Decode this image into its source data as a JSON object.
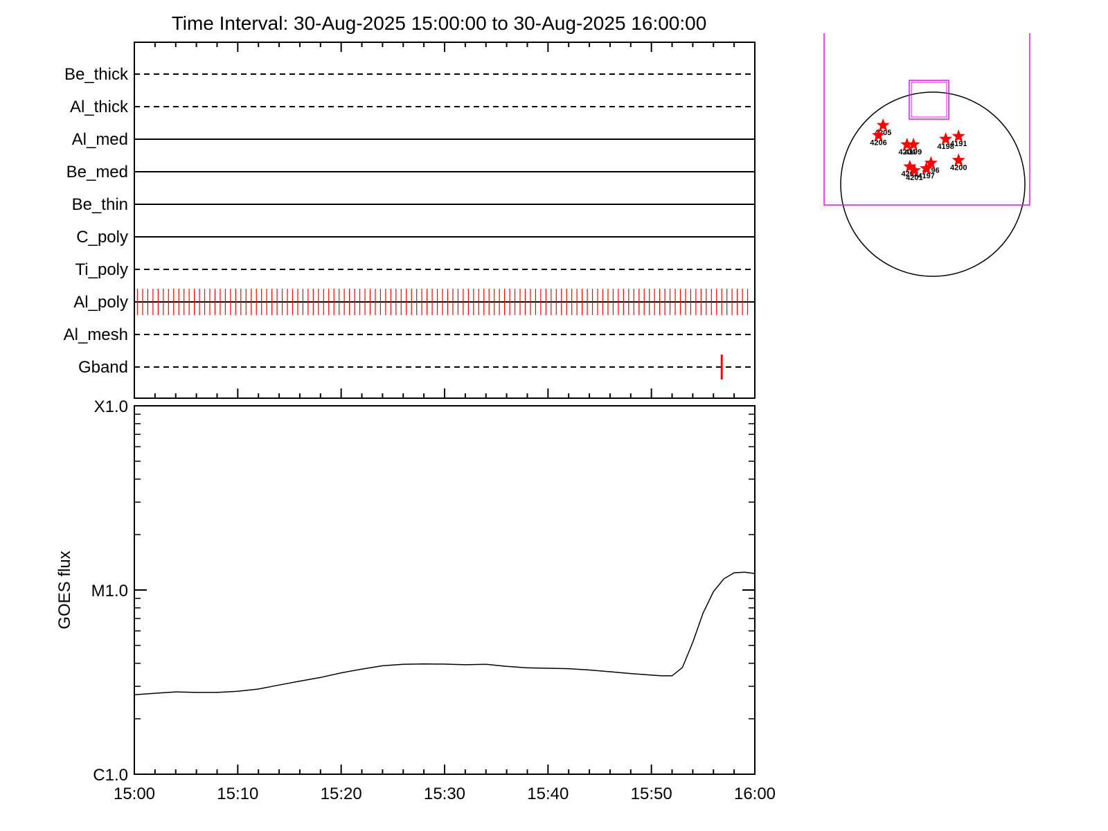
{
  "title": "Time Interval: 30-Aug-2025 15:00:00 to 30-Aug-2025 16:00:00",
  "colors": {
    "axis": "#000000",
    "event": "#ff0000",
    "fov_box": "#ff00ff",
    "disk": "#000000",
    "curve": "#000000"
  },
  "chart_data": [
    {
      "type": "timeline",
      "x": {
        "start": "15:00",
        "end": "16:00",
        "unit": "minutes"
      },
      "filters": [
        {
          "name": "Be_thick",
          "style": "dashed"
        },
        {
          "name": "Al_thick",
          "style": "dashed"
        },
        {
          "name": "Al_med",
          "style": "solid"
        },
        {
          "name": "Be_med",
          "style": "solid"
        },
        {
          "name": "Be_thin",
          "style": "solid"
        },
        {
          "name": "C_poly",
          "style": "solid"
        },
        {
          "name": "Ti_poly",
          "style": "dashed"
        },
        {
          "name": "Al_poly",
          "style": "solid"
        },
        {
          "name": "Al_mesh",
          "style": "dashed"
        },
        {
          "name": "Gband",
          "style": "dashed"
        }
      ],
      "events": [
        {
          "filter": "Al_poly",
          "start_min": 0.3,
          "end_min": 59.7,
          "cadence_min": 0.5
        },
        {
          "filter": "Gband",
          "times_min": [
            56.8
          ]
        }
      ]
    },
    {
      "type": "line",
      "ylabel": "GOES flux",
      "yscale": "log",
      "ylim": [
        1e-06,
        0.0001
      ],
      "yticks": [
        {
          "value": 1e-06,
          "label": "C1.0"
        },
        {
          "value": 1e-05,
          "label": "M1.0"
        },
        {
          "value": 0.0001,
          "label": "X1.0"
        }
      ],
      "xticks": [
        "15:00",
        "15:10",
        "15:20",
        "15:30",
        "15:40",
        "15:50",
        "16:00"
      ],
      "xlim": [
        "15:00",
        "16:00"
      ],
      "series": [
        {
          "x": [
            "15:00",
            "15:02",
            "15:04",
            "15:06",
            "15:08",
            "15:10",
            "15:12",
            "15:14",
            "15:16",
            "15:18",
            "15:20",
            "15:22",
            "15:24",
            "15:26",
            "15:28",
            "15:30",
            "15:32",
            "15:34",
            "15:36",
            "15:38",
            "15:40",
            "15:42",
            "15:44",
            "15:46",
            "15:48",
            "15:50",
            "15:51",
            "15:52",
            "15:53",
            "15:54",
            "15:55",
            "15:56",
            "15:57",
            "15:58",
            "15:59",
            "16:00"
          ],
          "y": [
            2.7e-06,
            2.75e-06,
            2.8e-06,
            2.78e-06,
            2.78e-06,
            2.82e-06,
            2.9e-06,
            3.05e-06,
            3.2e-06,
            3.35e-06,
            3.55e-06,
            3.72e-06,
            3.88e-06,
            3.95e-06,
            3.97e-06,
            3.96e-06,
            3.93e-06,
            3.95e-06,
            3.85e-06,
            3.78e-06,
            3.76e-06,
            3.74e-06,
            3.68e-06,
            3.6e-06,
            3.52e-06,
            3.45e-06,
            3.42e-06,
            3.42e-06,
            3.8e-06,
            5.2e-06,
            7.5e-06,
            9.8e-06,
            1.15e-05,
            1.24e-05,
            1.25e-05,
            1.23e-05
          ]
        }
      ]
    },
    {
      "type": "scatter",
      "points": [
        {
          "label": "4205",
          "x": 0.46,
          "y": 0.64
        },
        {
          "label": "4206",
          "x": 0.41,
          "y": 0.53
        },
        {
          "label": "4204",
          "x": 0.72,
          "y": 0.43
        },
        {
          "label": "4199",
          "x": 0.79,
          "y": 0.43
        },
        {
          "label": "4198",
          "x": 1.14,
          "y": 0.49
        },
        {
          "label": "4191",
          "x": 1.28,
          "y": 0.52
        },
        {
          "label": "4200",
          "x": 1.28,
          "y": 0.26
        },
        {
          "label": "4196",
          "x": 0.98,
          "y": 0.23
        },
        {
          "label": "4202",
          "x": 0.75,
          "y": 0.19
        },
        {
          "label": "4201",
          "x": 0.8,
          "y": 0.15
        },
        {
          "label": "4197",
          "x": 0.93,
          "y": 0.17
        }
      ]
    }
  ]
}
